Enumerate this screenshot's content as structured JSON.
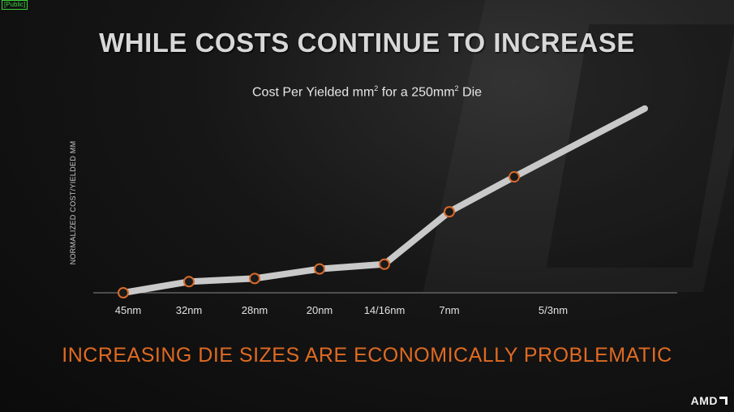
{
  "classification": "[Public]",
  "title": "WHILE COSTS CONTINUE TO INCREASE",
  "footer": "INCREASING DIE SIZES ARE ECONOMICALLY PROBLEMATIC",
  "logo": "AMD",
  "chart_data": {
    "type": "line",
    "title": "Cost Per Yielded mm² for a 250mm² Die",
    "title_parts": {
      "pre": "Cost Per Yielded mm",
      "sup1": "2",
      "mid": " for a 250mm",
      "sup2": "2",
      "post": " Die"
    },
    "ylabel": "NORMALIZED COST/YIELDED MM",
    "xlabel": "",
    "categories": [
      "45nm",
      "32nm",
      "28nm",
      "20nm",
      "14/16nm",
      "7nm",
      "5/3nm"
    ],
    "series": [
      {
        "values": [
          0.0,
          0.07,
          0.09,
          0.15,
          0.18,
          0.51,
          0.73
        ]
      }
    ],
    "trend_end_value": 1.16,
    "ylim": [
      0,
      1.2
    ],
    "grid": false,
    "colors": {
      "line": "#c9c9c9",
      "marker_border": "#d86a2a",
      "marker_fill": "#1a1a1a"
    }
  }
}
